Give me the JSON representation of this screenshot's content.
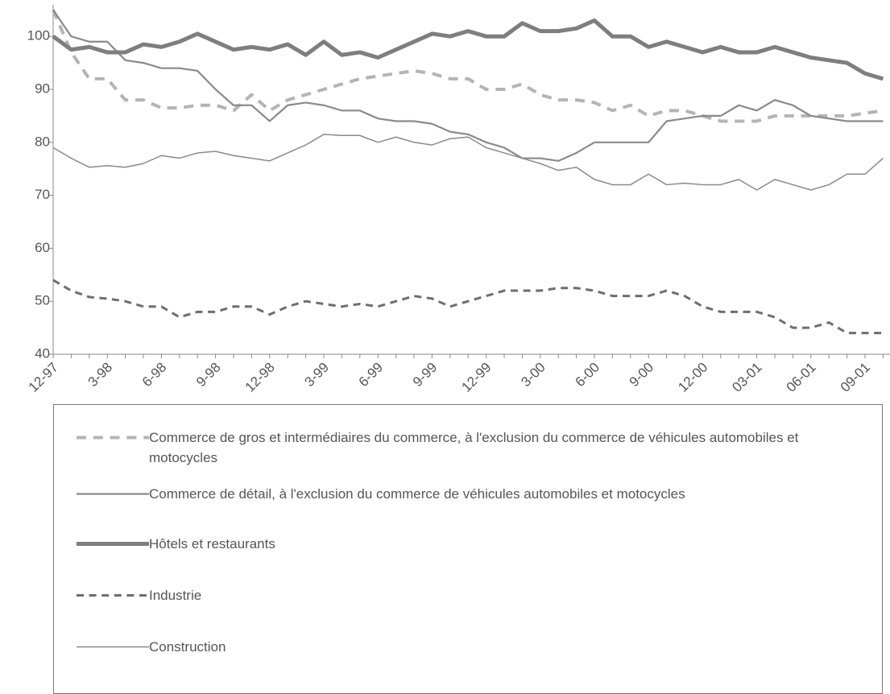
{
  "chart_data": {
    "type": "line",
    "categories": [
      "12-97",
      null,
      null,
      "3-98",
      null,
      null,
      "6-98",
      null,
      null,
      "9-98",
      null,
      null,
      "12-98",
      null,
      null,
      "3-99",
      null,
      null,
      "6-99",
      null,
      null,
      "9-99",
      null,
      null,
      "12-99",
      null,
      null,
      "3-00",
      null,
      null,
      "6-00",
      null,
      null,
      "9-00",
      null,
      null,
      "12-00",
      null,
      null,
      "03-01",
      null,
      null,
      "06-01",
      null,
      null,
      "09-01",
      null
    ],
    "ylim": [
      40,
      106
    ],
    "yticks": [
      40,
      50,
      60,
      70,
      80,
      90,
      100
    ],
    "series": [
      {
        "name": "Commerce de gros et intermédiaires du commerce, à l'exclusion du commerce de véhicules automobiles et motocycles",
        "color": "#b4b4b4",
        "dash": "dashed",
        "width": 4,
        "values": [
          105,
          97,
          92,
          92,
          88,
          88,
          86.5,
          86.5,
          87,
          87,
          86,
          89,
          86,
          88,
          89,
          90,
          91,
          92,
          92.5,
          93,
          93.5,
          93,
          92,
          92,
          90,
          90,
          91,
          89,
          88,
          88,
          87.5,
          86,
          87,
          85,
          86,
          86,
          85,
          84,
          84,
          84,
          85,
          85,
          85,
          85,
          85,
          85.5,
          86
        ]
      },
      {
        "name": "Commerce de détail, à l'exclusion du commerce de véhicules automobiles et motocycles",
        "color": "#8a8a8a",
        "dash": "solid",
        "width": 2.2,
        "values": [
          105,
          100,
          99,
          99,
          95.5,
          95,
          94,
          94,
          93.5,
          90,
          87,
          87,
          84,
          87,
          87.5,
          87,
          86,
          86,
          84.5,
          84,
          84,
          83.5,
          82,
          81.5,
          80,
          79,
          77,
          77,
          76.5,
          78,
          80,
          80,
          80,
          80,
          84,
          84.5,
          85,
          85,
          87,
          86,
          88,
          87,
          85,
          84.5,
          84,
          84,
          84
        ]
      },
      {
        "name": "Hôtels et restaurants",
        "color": "#7e7e7e",
        "dash": "solid",
        "width": 5,
        "values": [
          100,
          97.5,
          98,
          97,
          97,
          98.5,
          98,
          99,
          100.5,
          99,
          97.5,
          98,
          97.5,
          98.5,
          96.5,
          99,
          96.5,
          97,
          96,
          97.5,
          99,
          100.5,
          100,
          101,
          100,
          100,
          102.5,
          101,
          101,
          101.5,
          103,
          100,
          100,
          98,
          99,
          98,
          97,
          98,
          97,
          97,
          98,
          97,
          96,
          95.5,
          95,
          93,
          92
        ]
      },
      {
        "name": "Industrie",
        "color": "#6e6e6e",
        "dash": "dashed",
        "width": 3,
        "values": [
          54,
          52,
          50.8,
          50.5,
          50,
          49,
          49,
          47,
          48,
          48,
          49,
          49,
          47.5,
          49,
          50,
          49.5,
          49,
          49.5,
          49,
          50,
          51,
          50.5,
          49,
          50,
          51,
          52,
          52,
          52,
          52.5,
          52.5,
          52,
          51,
          51,
          51,
          52,
          51,
          49,
          48,
          48,
          48,
          47,
          45,
          45,
          46,
          44,
          44,
          44
        ]
      },
      {
        "name": "Construction",
        "color": "#8a8a8a",
        "dash": "solid",
        "width": 1.5,
        "values": [
          79,
          77,
          75.3,
          75.6,
          75.3,
          76,
          77.5,
          77,
          78,
          78.3,
          77.5,
          77,
          76.5,
          78,
          79.5,
          81.5,
          81.3,
          81.3,
          80,
          81,
          80,
          79.5,
          80.7,
          81,
          79,
          78,
          77,
          76,
          74.7,
          75.3,
          73,
          72,
          72,
          74,
          72,
          72.3,
          72,
          72,
          73,
          71,
          73,
          72,
          71,
          72,
          74,
          74,
          77
        ]
      }
    ]
  }
}
